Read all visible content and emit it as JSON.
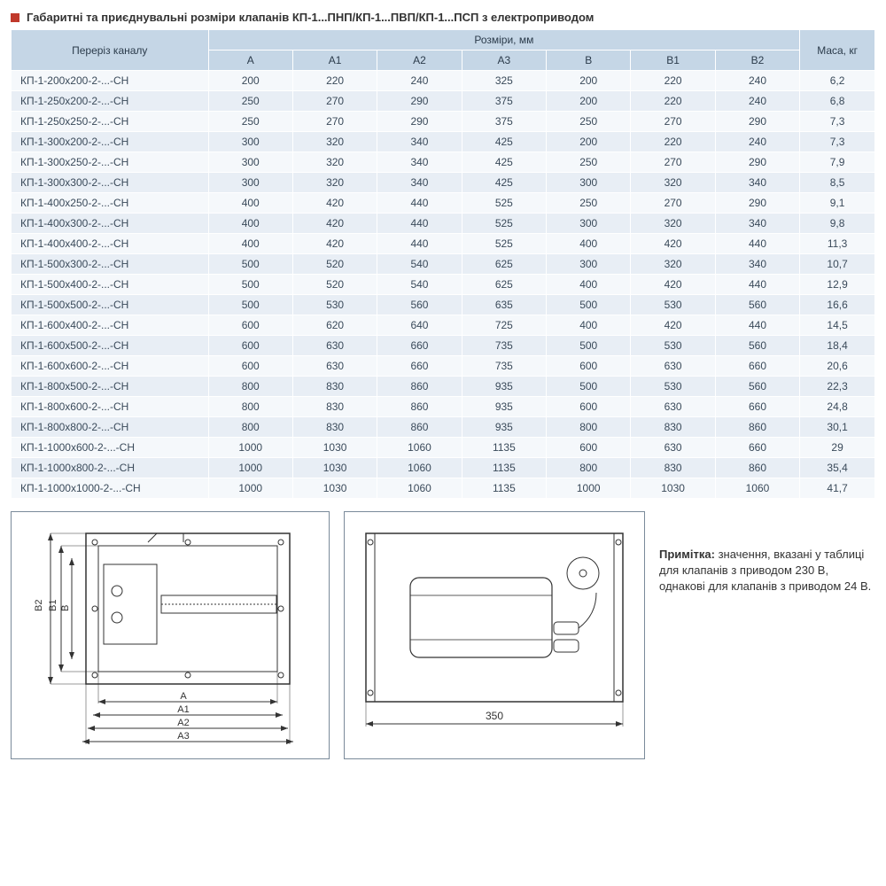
{
  "title": "Габаритні та приєднувальні розміри клапанів КП-1...ПНП/КП-1...ПВП/КП-1...ПСП з електроприводом",
  "colors": {
    "bullet": "#c0392b",
    "header_bg": "#c5d6e6",
    "row_odd": "#f5f8fb",
    "row_even": "#e8eef5",
    "border": "#ffffff",
    "text": "#3a4a5a"
  },
  "columns": {
    "model": "Переріз каналу",
    "group": "Розміри, мм",
    "dims": [
      "A",
      "A1",
      "A2",
      "A3",
      "B",
      "B1",
      "B2"
    ],
    "mass": "Маса, кг"
  },
  "rows": [
    {
      "m": "КП-1-200х200-2-...-СН",
      "A": "200",
      "A1": "220",
      "A2": "240",
      "A3": "325",
      "B": "200",
      "B1": "220",
      "B2": "240",
      "mass": "6,2"
    },
    {
      "m": "КП-1-250х200-2-...-СН",
      "A": "250",
      "A1": "270",
      "A2": "290",
      "A3": "375",
      "B": "200",
      "B1": "220",
      "B2": "240",
      "mass": "6,8"
    },
    {
      "m": "КП-1-250х250-2-...-СН",
      "A": "250",
      "A1": "270",
      "A2": "290",
      "A3": "375",
      "B": "250",
      "B1": "270",
      "B2": "290",
      "mass": "7,3"
    },
    {
      "m": "КП-1-300х200-2-...-СН",
      "A": "300",
      "A1": "320",
      "A2": "340",
      "A3": "425",
      "B": "200",
      "B1": "220",
      "B2": "240",
      "mass": "7,3"
    },
    {
      "m": "КП-1-300х250-2-...-СН",
      "A": "300",
      "A1": "320",
      "A2": "340",
      "A3": "425",
      "B": "250",
      "B1": "270",
      "B2": "290",
      "mass": "7,9"
    },
    {
      "m": "КП-1-300х300-2-...-СН",
      "A": "300",
      "A1": "320",
      "A2": "340",
      "A3": "425",
      "B": "300",
      "B1": "320",
      "B2": "340",
      "mass": "8,5"
    },
    {
      "m": "КП-1-400х250-2-...-СН",
      "A": "400",
      "A1": "420",
      "A2": "440",
      "A3": "525",
      "B": "250",
      "B1": "270",
      "B2": "290",
      "mass": "9,1"
    },
    {
      "m": "КП-1-400х300-2-...-СН",
      "A": "400",
      "A1": "420",
      "A2": "440",
      "A3": "525",
      "B": "300",
      "B1": "320",
      "B2": "340",
      "mass": "9,8"
    },
    {
      "m": "КП-1-400х400-2-...-СН",
      "A": "400",
      "A1": "420",
      "A2": "440",
      "A3": "525",
      "B": "400",
      "B1": "420",
      "B2": "440",
      "mass": "11,3"
    },
    {
      "m": "КП-1-500х300-2-...-СН",
      "A": "500",
      "A1": "520",
      "A2": "540",
      "A3": "625",
      "B": "300",
      "B1": "320",
      "B2": "340",
      "mass": "10,7"
    },
    {
      "m": "КП-1-500х400-2-...-СН",
      "A": "500",
      "A1": "520",
      "A2": "540",
      "A3": "625",
      "B": "400",
      "B1": "420",
      "B2": "440",
      "mass": "12,9"
    },
    {
      "m": "КП-1-500х500-2-...-СН",
      "A": "500",
      "A1": "530",
      "A2": "560",
      "A3": "635",
      "B": "500",
      "B1": "530",
      "B2": "560",
      "mass": "16,6"
    },
    {
      "m": "КП-1-600х400-2-...-СН",
      "A": "600",
      "A1": "620",
      "A2": "640",
      "A3": "725",
      "B": "400",
      "B1": "420",
      "B2": "440",
      "mass": "14,5"
    },
    {
      "m": "КП-1-600х500-2-...-СН",
      "A": "600",
      "A1": "630",
      "A2": "660",
      "A3": "735",
      "B": "500",
      "B1": "530",
      "B2": "560",
      "mass": "18,4"
    },
    {
      "m": "КП-1-600х600-2-...-СН",
      "A": "600",
      "A1": "630",
      "A2": "660",
      "A3": "735",
      "B": "600",
      "B1": "630",
      "B2": "660",
      "mass": "20,6"
    },
    {
      "m": "КП-1-800х500-2-...-СН",
      "A": "800",
      "A1": "830",
      "A2": "860",
      "A3": "935",
      "B": "500",
      "B1": "530",
      "B2": "560",
      "mass": "22,3"
    },
    {
      "m": "КП-1-800х600-2-...-СН",
      "A": "800",
      "A1": "830",
      "A2": "860",
      "A3": "935",
      "B": "600",
      "B1": "630",
      "B2": "660",
      "mass": "24,8"
    },
    {
      "m": "КП-1-800х800-2-...-СН",
      "A": "800",
      "A1": "830",
      "A2": "860",
      "A3": "935",
      "B": "800",
      "B1": "830",
      "B2": "860",
      "mass": "30,1"
    },
    {
      "m": "КП-1-1000х600-2-...-СН",
      "A": "1000",
      "A1": "1030",
      "A2": "1060",
      "A3": "1135",
      "B": "600",
      "B1": "630",
      "B2": "660",
      "mass": "29"
    },
    {
      "m": "КП-1-1000х800-2-...-СН",
      "A": "1000",
      "A1": "1030",
      "A2": "1060",
      "A3": "1135",
      "B": "800",
      "B1": "830",
      "B2": "860",
      "mass": "35,4"
    },
    {
      "m": "КП-1-1000х1000-2-...-СН",
      "A": "1000",
      "A1": "1030",
      "A2": "1060",
      "A3": "1135",
      "B": "1000",
      "B1": "1030",
      "B2": "1060",
      "mass": "41,7"
    }
  ],
  "diagram": {
    "left": {
      "labels_v": [
        "B2",
        "B1",
        "B"
      ],
      "labels_h": [
        "A",
        "A1",
        "A2",
        "A3"
      ]
    },
    "right": {
      "bottom_dim": "350"
    }
  },
  "note": {
    "label": "Примітка:",
    "text": "значення, вказані у таблиці для клапанів з приводом 230 В, однакові для клапанів з приводом 24 В."
  }
}
